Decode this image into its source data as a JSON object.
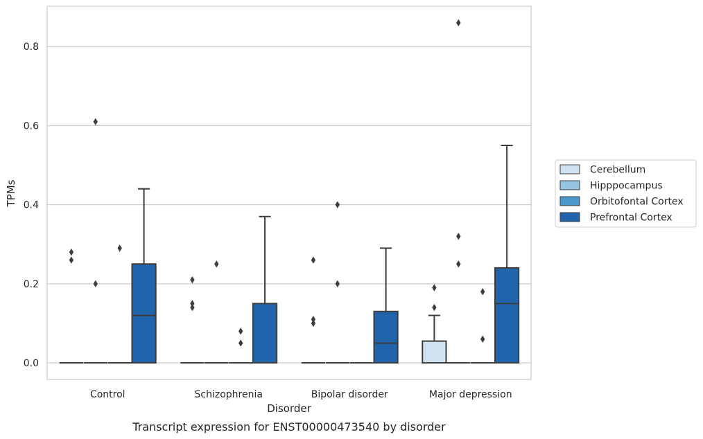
{
  "chart_data": {
    "type": "box",
    "xlabel": "Disorder",
    "ylabel": "TPMs",
    "caption": "Transcript expression for ENST00000473540 by disorder",
    "categories": [
      "Control",
      "Schizophrenia",
      "Bipolar disorder",
      "Major depression"
    ],
    "ylim": [
      -0.042,
      0.902
    ],
    "yticks": [
      0.0,
      0.2,
      0.4,
      0.6,
      0.8
    ],
    "ytick_labels": [
      "0.0",
      "0.2",
      "0.4",
      "0.6",
      "0.8"
    ],
    "grid": true,
    "legend_position": "right",
    "series": [
      {
        "name": "Cerebellum",
        "color": "#d0e1f2",
        "boxes": [
          {
            "q1": 0,
            "median": 0,
            "q3": 0,
            "whislo": 0,
            "whishi": 0,
            "fliers": [
              0.26,
              0.28
            ]
          },
          {
            "q1": 0,
            "median": 0,
            "q3": 0,
            "whislo": 0,
            "whishi": 0,
            "fliers": [
              0.14,
              0.15,
              0.21
            ]
          },
          {
            "q1": 0,
            "median": 0,
            "q3": 0,
            "whislo": 0,
            "whishi": 0,
            "fliers": [
              0.1,
              0.11,
              0.26
            ]
          },
          {
            "q1": 0,
            "median": 0,
            "q3": 0.055,
            "whislo": 0,
            "whishi": 0.12,
            "fliers": [
              0.14,
              0.19
            ]
          }
        ]
      },
      {
        "name": "Hipppocampus",
        "color": "#94c4df",
        "boxes": [
          {
            "q1": 0,
            "median": 0,
            "q3": 0,
            "whislo": 0,
            "whishi": 0,
            "fliers": [
              0.2,
              0.61
            ]
          },
          {
            "q1": 0,
            "median": 0,
            "q3": 0,
            "whislo": 0,
            "whishi": 0,
            "fliers": [
              0.25
            ]
          },
          {
            "q1": 0,
            "median": 0,
            "q3": 0,
            "whislo": 0,
            "whishi": 0,
            "fliers": [
              0.2,
              0.4
            ]
          },
          {
            "q1": 0,
            "median": 0,
            "q3": 0,
            "whislo": 0,
            "whishi": 0,
            "fliers": [
              0.25,
              0.32,
              0.86
            ]
          }
        ]
      },
      {
        "name": "Orbitofontal Cortex",
        "color": "#4a98c9",
        "boxes": [
          {
            "q1": 0,
            "median": 0,
            "q3": 0,
            "whislo": 0,
            "whishi": 0,
            "fliers": [
              0.29
            ]
          },
          {
            "q1": 0,
            "median": 0,
            "q3": 0,
            "whislo": 0,
            "whishi": 0,
            "fliers": [
              0.05,
              0.08
            ]
          },
          {
            "q1": 0,
            "median": 0,
            "q3": 0,
            "whislo": 0,
            "whishi": 0,
            "fliers": []
          },
          {
            "q1": 0,
            "median": 0,
            "q3": 0,
            "whislo": 0,
            "whishi": 0,
            "fliers": [
              0.06,
              0.18
            ]
          }
        ]
      },
      {
        "name": "Prefrontal Cortex",
        "color": "#2164ab",
        "boxes": [
          {
            "q1": 0,
            "median": 0.12,
            "q3": 0.25,
            "whislo": 0,
            "whishi": 0.44,
            "fliers": []
          },
          {
            "q1": 0,
            "median": 0,
            "q3": 0.15,
            "whislo": 0,
            "whishi": 0.37,
            "fliers": []
          },
          {
            "q1": 0,
            "median": 0.05,
            "q3": 0.13,
            "whislo": 0,
            "whishi": 0.29,
            "fliers": []
          },
          {
            "q1": 0,
            "median": 0.15,
            "q3": 0.24,
            "whislo": 0,
            "whishi": 0.55,
            "fliers": []
          }
        ]
      }
    ],
    "colors": {
      "grid": "#cccccc",
      "frame": "#cccccc",
      "box_edge": "#3d3d3d",
      "flier": "#3d3d3d"
    }
  }
}
